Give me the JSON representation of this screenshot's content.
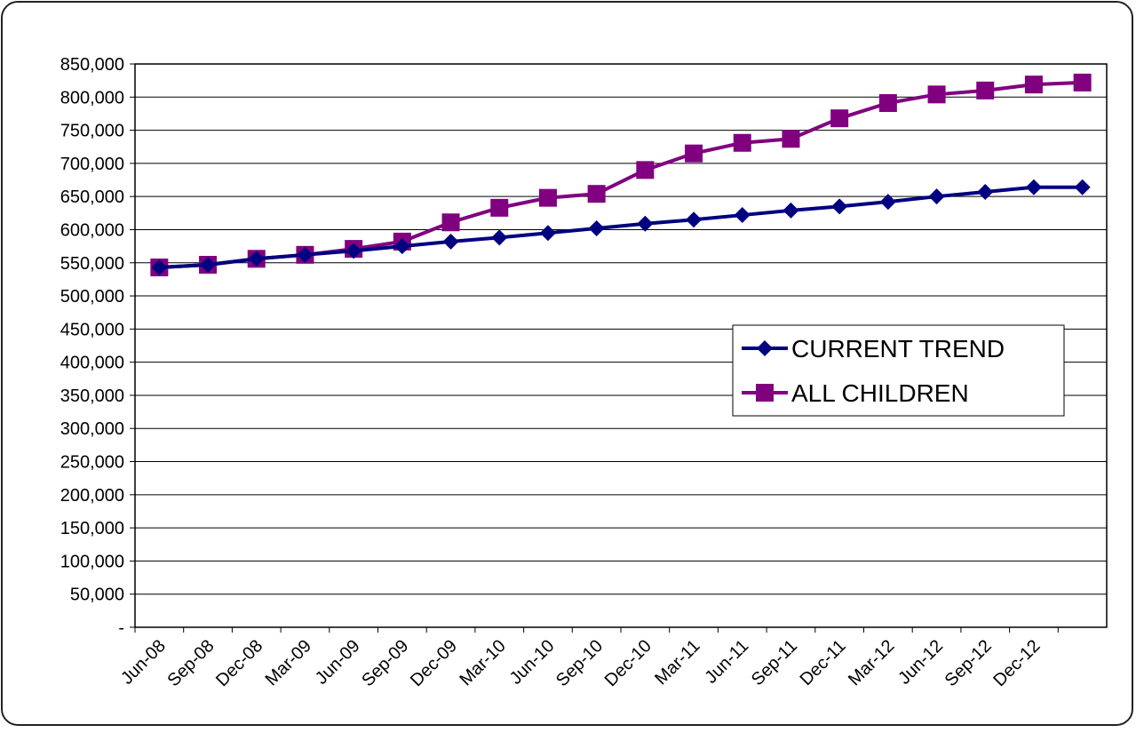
{
  "chart_data": {
    "type": "line",
    "categories": [
      "Jun-08",
      "Sep-08",
      "Dec-08",
      "Mar-09",
      "Jun-09",
      "Sep-09",
      "Dec-09",
      "Mar-10",
      "Jun-10",
      "Sep-10",
      "Dec-10",
      "Mar-11",
      "Jun-11",
      "Sep-11",
      "Dec-11",
      "Mar-12",
      "Jun-12",
      "Sep-12",
      "Dec-12",
      null
    ],
    "series": [
      {
        "name": "CURRENT TREND",
        "color": "#000080",
        "marker": "diamond",
        "values": [
          543000,
          547000,
          556000,
          562000,
          568000,
          575000,
          582000,
          588000,
          595000,
          602000,
          609000,
          615000,
          622000,
          629000,
          635000,
          642000,
          650000,
          657000,
          664000,
          664000
        ]
      },
      {
        "name": "ALL CHILDREN",
        "color": "#800080",
        "marker": "square",
        "values": [
          543000,
          547000,
          556000,
          562000,
          571000,
          582000,
          611000,
          633000,
          648000,
          654000,
          690000,
          715000,
          731000,
          737000,
          768000,
          791000,
          804000,
          810000,
          819000,
          822000
        ]
      }
    ],
    "ylim": [
      0,
      850000
    ],
    "yticks": [
      {
        "value": 0,
        "label": "-"
      },
      {
        "value": 50000,
        "label": "50,000"
      },
      {
        "value": 100000,
        "label": "100,000"
      },
      {
        "value": 150000,
        "label": "150,000"
      },
      {
        "value": 200000,
        "label": "200,000"
      },
      {
        "value": 250000,
        "label": "250,000"
      },
      {
        "value": 300000,
        "label": "300,000"
      },
      {
        "value": 350000,
        "label": "350,000"
      },
      {
        "value": 400000,
        "label": "400,000"
      },
      {
        "value": 450000,
        "label": "450,000"
      },
      {
        "value": 500000,
        "label": "500,000"
      },
      {
        "value": 550000,
        "label": "550,000"
      },
      {
        "value": 600000,
        "label": "600,000"
      },
      {
        "value": 650000,
        "label": "650,000"
      },
      {
        "value": 700000,
        "label": "700,000"
      },
      {
        "value": 750000,
        "label": "750,000"
      },
      {
        "value": 800000,
        "label": "800,000"
      },
      {
        "value": 850000,
        "label": "850,000"
      }
    ],
    "grid": true,
    "legend": "right"
  }
}
